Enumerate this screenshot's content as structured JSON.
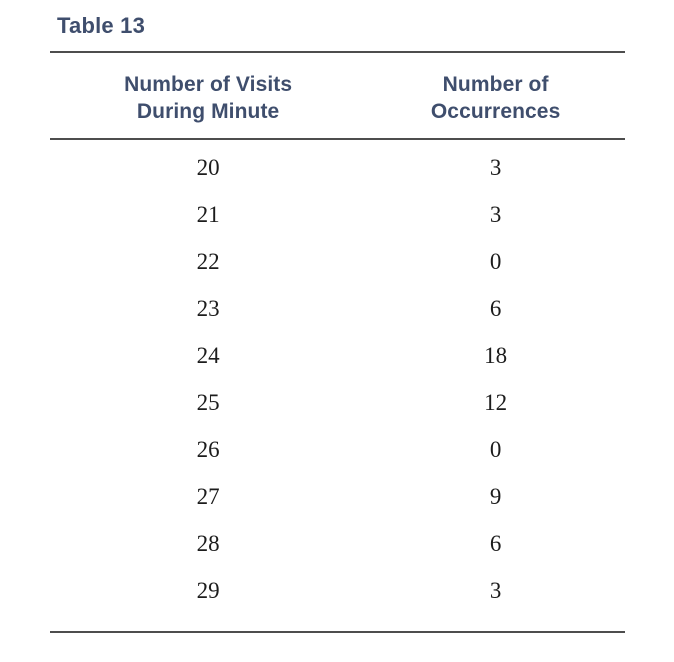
{
  "page": {
    "background_color": "#ffffff",
    "accent_navy": "#3f4e6d",
    "rule_color": "#4d4d4d",
    "body_text_color": "#1c1c1c"
  },
  "table": {
    "title": "Table 13",
    "headers": [
      {
        "label": "Number of Visits\nDuring Minute"
      },
      {
        "label": "Number of\nOccurrences"
      }
    ],
    "rows": [
      {
        "visits": "20",
        "occurrences": "3"
      },
      {
        "visits": "21",
        "occurrences": "3"
      },
      {
        "visits": "22",
        "occurrences": "0"
      },
      {
        "visits": "23",
        "occurrences": "6"
      },
      {
        "visits": "24",
        "occurrences": "18"
      },
      {
        "visits": "25",
        "occurrences": "12"
      },
      {
        "visits": "26",
        "occurrences": "0"
      },
      {
        "visits": "27",
        "occurrences": "9"
      },
      {
        "visits": "28",
        "occurrences": "6"
      },
      {
        "visits": "29",
        "occurrences": "3"
      }
    ]
  },
  "chart_data": {
    "type": "table",
    "title": "Table 13",
    "columns": [
      "Number of Visits During Minute",
      "Number of Occurrences"
    ],
    "rows": [
      [
        20,
        3
      ],
      [
        21,
        3
      ],
      [
        22,
        0
      ],
      [
        23,
        6
      ],
      [
        24,
        18
      ],
      [
        25,
        12
      ],
      [
        26,
        0
      ],
      [
        27,
        9
      ],
      [
        28,
        6
      ],
      [
        29,
        3
      ]
    ]
  }
}
